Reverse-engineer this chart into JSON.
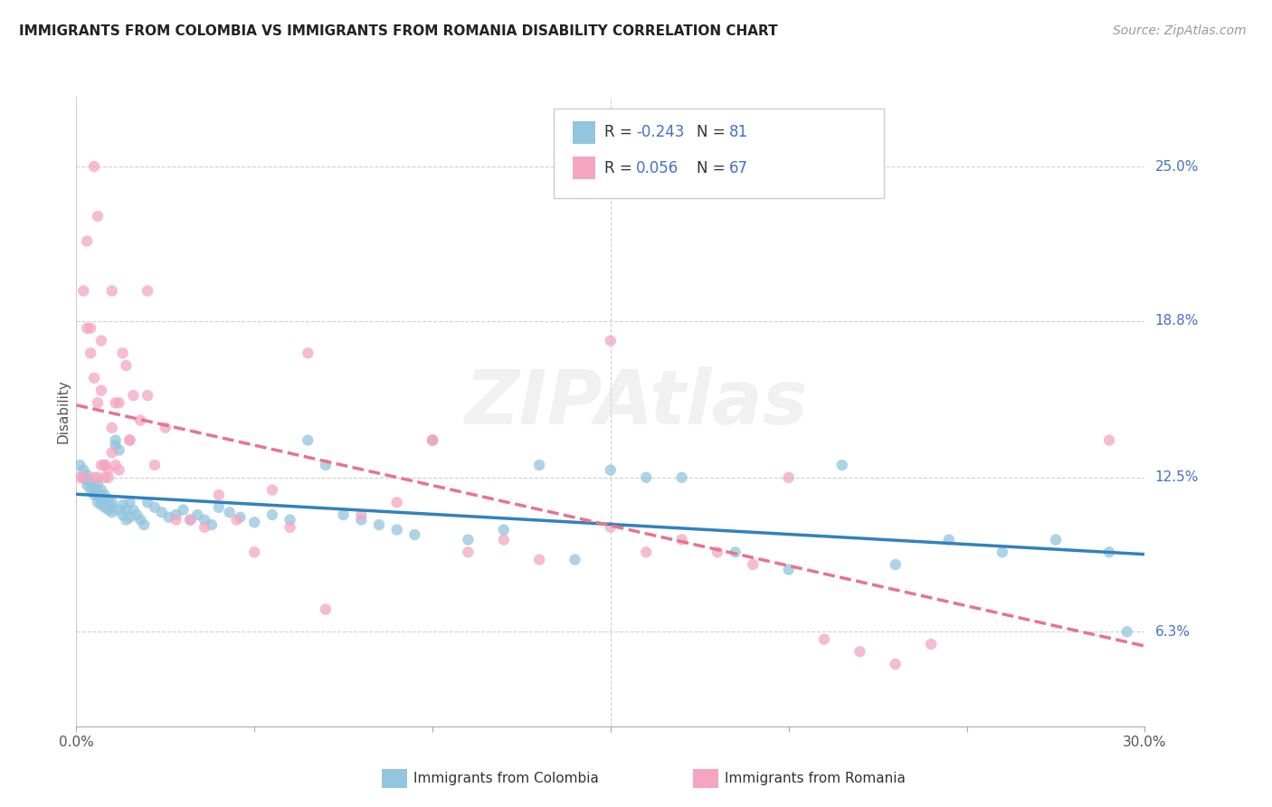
{
  "title": "IMMIGRANTS FROM COLOMBIA VS IMMIGRANTS FROM ROMANIA DISABILITY CORRELATION CHART",
  "source": "Source: ZipAtlas.com",
  "ylabel": "Disability",
  "right_yticks": [
    "25.0%",
    "18.8%",
    "12.5%",
    "6.3%"
  ],
  "right_ytick_vals": [
    0.25,
    0.188,
    0.125,
    0.063
  ],
  "colombia_R": -0.243,
  "colombia_N": 81,
  "romania_R": 0.056,
  "romania_N": 67,
  "colombia_color": "#92c5de",
  "romania_color": "#f4a6c0",
  "colombia_line_color": "#3182bd",
  "romania_line_color": "#e8748a",
  "xmin": 0.0,
  "xmax": 0.3,
  "ymin": 0.025,
  "ymax": 0.278,
  "colombia_points_x": [
    0.001,
    0.002,
    0.002,
    0.003,
    0.003,
    0.003,
    0.004,
    0.004,
    0.005,
    0.005,
    0.005,
    0.006,
    0.006,
    0.006,
    0.007,
    0.007,
    0.007,
    0.007,
    0.008,
    0.008,
    0.008,
    0.009,
    0.009,
    0.009,
    0.01,
    0.01,
    0.01,
    0.011,
    0.011,
    0.012,
    0.012,
    0.013,
    0.013,
    0.014,
    0.014,
    0.015,
    0.015,
    0.016,
    0.017,
    0.018,
    0.019,
    0.02,
    0.022,
    0.024,
    0.026,
    0.028,
    0.03,
    0.032,
    0.034,
    0.036,
    0.038,
    0.04,
    0.043,
    0.046,
    0.05,
    0.055,
    0.06,
    0.065,
    0.07,
    0.075,
    0.08,
    0.085,
    0.09,
    0.095,
    0.1,
    0.11,
    0.12,
    0.13,
    0.14,
    0.15,
    0.16,
    0.17,
    0.185,
    0.2,
    0.215,
    0.23,
    0.245,
    0.26,
    0.275,
    0.29,
    0.295
  ],
  "colombia_points_y": [
    0.13,
    0.125,
    0.128,
    0.124,
    0.126,
    0.122,
    0.12,
    0.123,
    0.121,
    0.119,
    0.118,
    0.122,
    0.118,
    0.115,
    0.12,
    0.118,
    0.116,
    0.114,
    0.118,
    0.115,
    0.113,
    0.116,
    0.114,
    0.112,
    0.115,
    0.113,
    0.111,
    0.14,
    0.138,
    0.136,
    0.112,
    0.114,
    0.11,
    0.112,
    0.108,
    0.115,
    0.109,
    0.112,
    0.11,
    0.108,
    0.106,
    0.115,
    0.113,
    0.111,
    0.109,
    0.11,
    0.112,
    0.108,
    0.11,
    0.108,
    0.106,
    0.113,
    0.111,
    0.109,
    0.107,
    0.11,
    0.108,
    0.14,
    0.13,
    0.11,
    0.108,
    0.106,
    0.104,
    0.102,
    0.14,
    0.1,
    0.104,
    0.13,
    0.092,
    0.128,
    0.125,
    0.125,
    0.095,
    0.088,
    0.13,
    0.09,
    0.1,
    0.095,
    0.1,
    0.095,
    0.063
  ],
  "romania_points_x": [
    0.001,
    0.002,
    0.002,
    0.003,
    0.003,
    0.004,
    0.004,
    0.005,
    0.005,
    0.006,
    0.006,
    0.007,
    0.007,
    0.008,
    0.008,
    0.009,
    0.01,
    0.01,
    0.011,
    0.012,
    0.013,
    0.014,
    0.015,
    0.016,
    0.018,
    0.02,
    0.022,
    0.025,
    0.028,
    0.032,
    0.036,
    0.04,
    0.045,
    0.05,
    0.06,
    0.065,
    0.07,
    0.08,
    0.09,
    0.1,
    0.11,
    0.12,
    0.13,
    0.15,
    0.16,
    0.17,
    0.18,
    0.19,
    0.2,
    0.21,
    0.22,
    0.23,
    0.24,
    0.005,
    0.006,
    0.007,
    0.008,
    0.009,
    0.01,
    0.011,
    0.012,
    0.015,
    0.02,
    0.055,
    0.1,
    0.15,
    0.29
  ],
  "romania_points_y": [
    0.125,
    0.125,
    0.2,
    0.185,
    0.22,
    0.185,
    0.175,
    0.165,
    0.125,
    0.155,
    0.125,
    0.16,
    0.13,
    0.13,
    0.125,
    0.128,
    0.145,
    0.135,
    0.13,
    0.128,
    0.175,
    0.17,
    0.14,
    0.158,
    0.148,
    0.158,
    0.13,
    0.145,
    0.108,
    0.108,
    0.105,
    0.118,
    0.108,
    0.095,
    0.105,
    0.175,
    0.072,
    0.11,
    0.115,
    0.14,
    0.095,
    0.1,
    0.092,
    0.105,
    0.095,
    0.1,
    0.095,
    0.09,
    0.125,
    0.06,
    0.055,
    0.05,
    0.058,
    0.25,
    0.23,
    0.18,
    0.13,
    0.125,
    0.2,
    0.155,
    0.155,
    0.14,
    0.2,
    0.12,
    0.14,
    0.18,
    0.14
  ]
}
